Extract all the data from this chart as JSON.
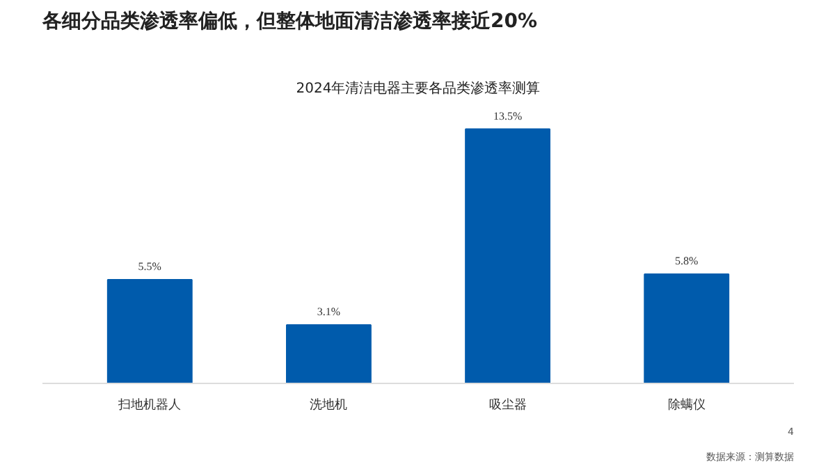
{
  "chart_data": {
    "type": "bar",
    "title": "各细分品类渗透率偏低，但整体地面清洁渗透率接近20%",
    "subtitle": "2024年清洁电器主要各品类渗透率测算",
    "categories": [
      "扫地机器人",
      "洗地机",
      "吸尘器",
      "除螨仪"
    ],
    "values": [
      5.5,
      3.1,
      13.5,
      5.8
    ],
    "value_labels": [
      "5.5%",
      "3.1%",
      "13.5%",
      "5.8%"
    ],
    "color": "#005bac",
    "annotations": [
      "数据来源：测算数据",
      "4"
    ]
  }
}
